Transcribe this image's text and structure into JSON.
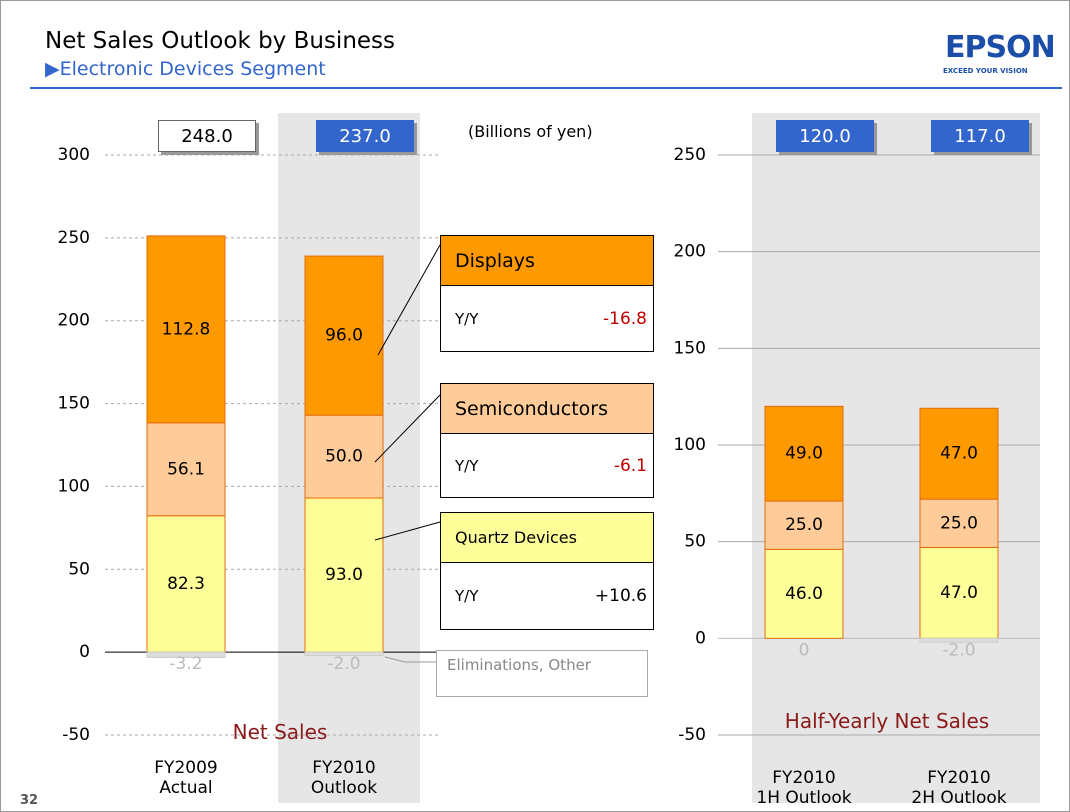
{
  "slide": {
    "title": "Net Sales Outlook by Business",
    "subtitle": "▶Electronic Devices Segment",
    "logo": "EPSON",
    "tagline": "EXCEED YOUR VISION",
    "page": "32",
    "unit_note": "(Billions of yen)",
    "yoy_title": "Y/Y"
  },
  "chart_data": [
    {
      "type": "bar",
      "stacked": true,
      "annotation": "Net Sales",
      "categories": [
        "FY2009\nActual",
        "FY2010\nOutlook"
      ],
      "series": [
        {
          "name": "Quartz Devices",
          "color": "#ffff99",
          "values": [
            82.3,
            93.0
          ],
          "value_labels": [
            "82.3",
            "93.0"
          ],
          "yoy": "+10.6"
        },
        {
          "name": "Semiconductors",
          "color": "#ffcc99",
          "values": [
            56.1,
            50.0
          ],
          "value_labels": [
            "56.1",
            "50.0"
          ],
          "yoy": "-6.1"
        },
        {
          "name": "Displays",
          "color": "#ff9900",
          "values": [
            112.8,
            96.0
          ],
          "value_labels": [
            "112.8",
            "96.0"
          ],
          "yoy": "-16.8"
        },
        {
          "name": "Eliminations, Other",
          "color": "#dddddd",
          "values": [
            -3.2,
            -2.0
          ],
          "value_labels": [
            "-3.2",
            "-2.0"
          ]
        }
      ],
      "totals": [
        248.0,
        237.0
      ],
      "total_labels": [
        "248.0",
        "237.0"
      ],
      "total_colors": [
        "#ffffff",
        "#3366cc"
      ],
      "ylim": [
        -50,
        300
      ],
      "yticks": [
        -50,
        0,
        50,
        100,
        150,
        200,
        250,
        300
      ],
      "grid": true
    },
    {
      "type": "bar",
      "stacked": true,
      "annotation": "Half-Yearly Net Sales",
      "categories": [
        "FY2010\n1H Outlook",
        "FY2010\n2H Outlook"
      ],
      "series": [
        {
          "color": "#ffff99",
          "values": [
            46.0,
            47.0
          ],
          "value_labels": [
            "46.0",
            "47.0"
          ]
        },
        {
          "color": "#ffcc99",
          "values": [
            25.0,
            25.0
          ],
          "value_labels": [
            "25.0",
            "25.0"
          ]
        },
        {
          "color": "#ff9900",
          "values": [
            49.0,
            47.0
          ],
          "value_labels": [
            "49.0",
            "47.0"
          ]
        },
        {
          "color": "#dddddd",
          "values": [
            0,
            -2.0
          ],
          "value_labels": [
            "0",
            "-2.0"
          ]
        }
      ],
      "totals": [
        120.0,
        117.0
      ],
      "total_labels": [
        "120.0",
        "117.0"
      ],
      "total_colors": [
        "#3366cc",
        "#3366cc"
      ],
      "ylim": [
        -50,
        250
      ],
      "yticks": [
        -50,
        0,
        50,
        100,
        150,
        200,
        250
      ],
      "grid": true
    }
  ]
}
